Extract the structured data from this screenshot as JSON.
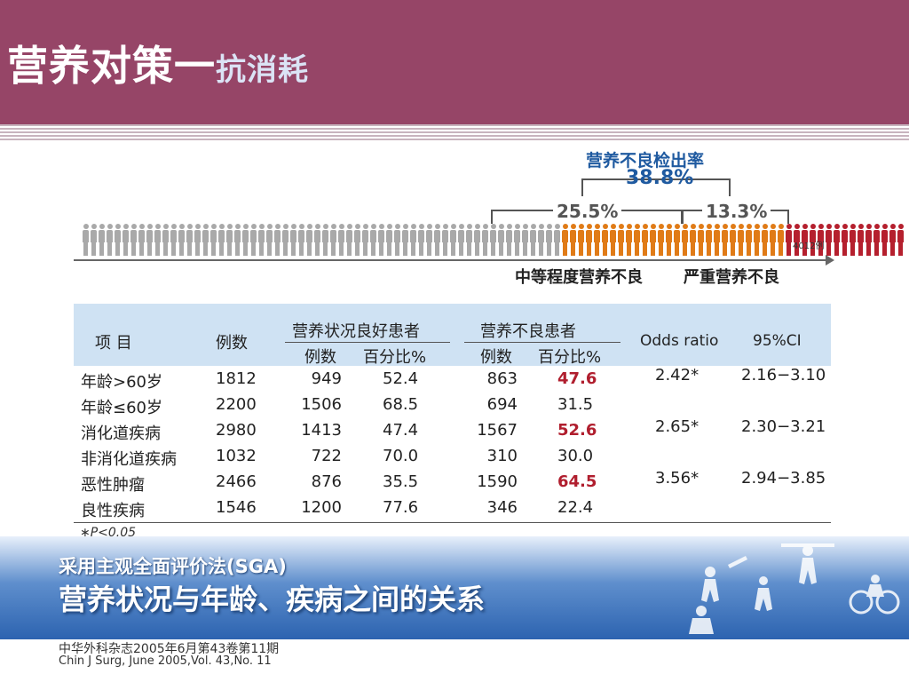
{
  "header": {
    "title_main": "营养对策一",
    "title_sub": "抗消耗",
    "colors": {
      "bg": "#964567",
      "title": "#ffffff",
      "sub": "#dbe3f5"
    }
  },
  "figure": {
    "title": "营养不良检出率",
    "total_rate": "38.8%",
    "moderate_rate": "25.5%",
    "severe_rate": "13.3%",
    "total_count": "4012例",
    "moderate_label": "中等程度营养不良",
    "severe_label": "严重营养不良",
    "groups": [
      {
        "name": "normal",
        "count": 60,
        "color": "#a9a9a9"
      },
      {
        "name": "moderate",
        "count": 28,
        "color": "#e07b17"
      },
      {
        "name": "severe",
        "count": 15,
        "color": "#b5202e"
      }
    ]
  },
  "table": {
    "headers": {
      "item": "项 目",
      "count": "例数",
      "good_group": "营养状况良好患者",
      "poor_group": "营养不良患者",
      "good_count": "例数",
      "good_pct": "百分比%",
      "poor_count": "例数",
      "poor_pct": "百分比%",
      "odds": "Odds ratio",
      "ci": "95%CI"
    },
    "rows": [
      {
        "item": "年龄>60岁",
        "count": "1812",
        "good_count": "949",
        "good_pct": "52.4",
        "poor_count": "863",
        "poor_pct": "47.6",
        "highlight": true
      },
      {
        "item": "年龄≤60岁",
        "count": "2200",
        "good_count": "1506",
        "good_pct": "68.5",
        "poor_count": "694",
        "poor_pct": "31.5",
        "highlight": false
      },
      {
        "item": "消化道疾病",
        "count": "2980",
        "good_count": "1413",
        "good_pct": "47.4",
        "poor_count": "1567",
        "poor_pct": "52.6",
        "highlight": true
      },
      {
        "item": "非消化道疾病",
        "count": "1032",
        "good_count": "722",
        "good_pct": "70.0",
        "poor_count": "310",
        "poor_pct": "30.0",
        "highlight": false
      },
      {
        "item": "恶性肿瘤",
        "count": "2466",
        "good_count": "876",
        "good_pct": "35.5",
        "poor_count": "1590",
        "poor_pct": "64.5",
        "highlight": true
      },
      {
        "item": "良性疾病",
        "count": "1546",
        "good_count": "1200",
        "good_pct": "77.6",
        "poor_count": "346",
        "poor_pct": "22.4",
        "highlight": false
      }
    ],
    "stats": [
      {
        "odds": "2.42*",
        "ci": "2.16−3.10"
      },
      {
        "odds": "2.65*",
        "ci": "2.30−3.21"
      },
      {
        "odds": "3.56*",
        "ci": "2.94−3.85"
      }
    ],
    "note": "∗P<0.05",
    "colors": {
      "header_bg": "#cfe2f3",
      "highlight": "#b01e2e"
    }
  },
  "banner": {
    "subtitle": "采用主观全面评价法(SGA)",
    "title": "营养状况与年龄、疾病之间的关系"
  },
  "citation": {
    "cn": "中华外科杂志2005年6月第43卷第11期",
    "en": "Chin J Surg, June 2005,Vol. 43,No. 11"
  }
}
